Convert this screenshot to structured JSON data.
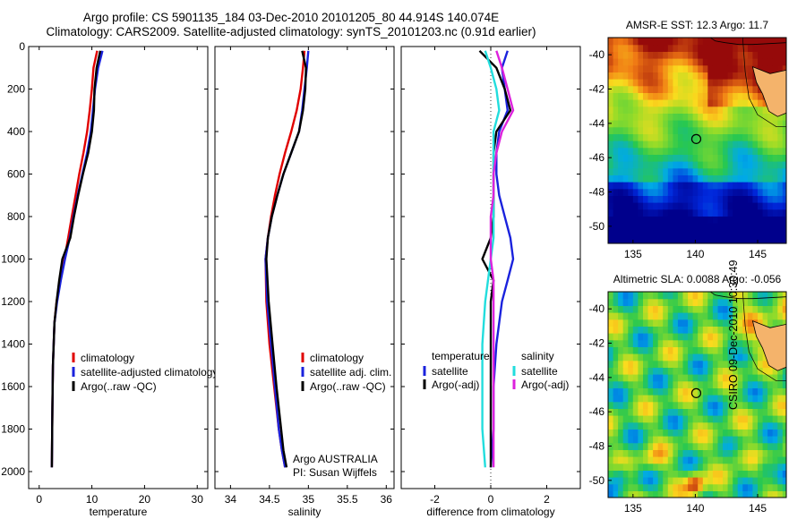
{
  "header": {
    "line1": "Argo profile: CS 5901135_184 03-Dec-2010 20101205_80 44.914S 140.074E",
    "line2": "Climatology: CARS2009. Satellite-adjusted climatology: synTS_20101203.nc (0.91d earlier)"
  },
  "credit": "CSIRO 09-Dec-2010 10:30:49",
  "colors": {
    "climatology": "#e00000",
    "satellite": "#1a22dd",
    "argo": "#000000",
    "salinity_satellite": "#22dddd",
    "salinity_argo": "#dd22dd"
  },
  "chart_data": [
    {
      "id": "temperature",
      "type": "line",
      "xlabel": "temperature",
      "ylabel": "depth",
      "xlim": [
        -2,
        32
      ],
      "ylim": [
        0,
        2080
      ],
      "xticks": [
        0,
        10,
        20,
        30
      ],
      "yticks": [
        0,
        200,
        400,
        600,
        800,
        1000,
        1200,
        1400,
        1600,
        1800,
        2000
      ],
      "series": [
        {
          "name": "climatology",
          "color_key": "climatology",
          "x": [
            11.0,
            10.3,
            10.0,
            9.6,
            9.1,
            8.4,
            7.6,
            6.9,
            6.2,
            5.5,
            4.8,
            4.0,
            3.3,
            2.9,
            2.6,
            2.5,
            2.4
          ],
          "y": [
            20,
            100,
            200,
            300,
            400,
            500,
            600,
            700,
            800,
            900,
            1000,
            1100,
            1200,
            1300,
            1500,
            1700,
            1980
          ]
        },
        {
          "name": "satellite-adjusted climatology",
          "color_key": "satellite",
          "x": [
            12.0,
            11.2,
            10.6,
            10.2,
            9.8,
            9.1,
            8.2,
            7.3,
            6.5,
            5.8,
            4.9,
            4.1,
            3.4,
            2.9,
            2.6,
            2.5,
            2.4
          ],
          "y": [
            20,
            100,
            200,
            300,
            400,
            500,
            600,
            700,
            800,
            900,
            1000,
            1100,
            1200,
            1300,
            1500,
            1700,
            1980
          ]
        },
        {
          "name": "Argo(..raw -QC)",
          "color_key": "argo",
          "x": [
            11.6,
            10.9,
            10.5,
            10.4,
            10.0,
            9.3,
            8.3,
            7.4,
            6.6,
            5.9,
            4.4,
            3.8,
            3.3,
            2.9,
            2.6,
            2.5,
            2.4
          ],
          "y": [
            20,
            100,
            200,
            300,
            400,
            500,
            600,
            700,
            800,
            900,
            1000,
            1100,
            1200,
            1300,
            1500,
            1700,
            1980
          ]
        }
      ],
      "legend": {
        "placement": "lower-right",
        "entries": [
          "climatology",
          "satellite-adjusted climatology",
          "Argo(..raw -QC)"
        ]
      }
    },
    {
      "id": "salinity",
      "type": "line",
      "xlabel": "salinity",
      "ylabel": "depth",
      "xlim": [
        33.8,
        36.1
      ],
      "ylim": [
        0,
        2080
      ],
      "xticks": [
        34,
        34.5,
        35,
        35.5,
        36
      ],
      "yticks": [
        0,
        200,
        400,
        600,
        800,
        1000,
        1200,
        1400,
        1600,
        1800,
        2000
      ],
      "series": [
        {
          "name": "climatology",
          "color_key": "climatology",
          "x": [
            34.95,
            34.93,
            34.9,
            34.85,
            34.78,
            34.7,
            34.63,
            34.57,
            34.52,
            34.48,
            34.45,
            34.46,
            34.5,
            34.56,
            34.62,
            34.66,
            34.7
          ],
          "y": [
            20,
            100,
            200,
            300,
            400,
            500,
            600,
            700,
            800,
            900,
            1000,
            1200,
            1400,
            1600,
            1800,
            1900,
            1980
          ]
        },
        {
          "name": "satellite adj. clim.",
          "color_key": "satellite",
          "x": [
            35.0,
            34.98,
            34.95,
            34.92,
            34.88,
            34.78,
            34.68,
            34.6,
            34.53,
            34.48,
            34.45,
            34.47,
            34.52,
            34.57,
            34.62,
            34.66,
            34.7
          ],
          "y": [
            20,
            100,
            200,
            300,
            400,
            500,
            600,
            700,
            800,
            900,
            1000,
            1200,
            1400,
            1600,
            1800,
            1900,
            1980
          ]
        },
        {
          "name": "Argo(..raw -QC)",
          "color_key": "argo",
          "x": [
            34.92,
            34.97,
            34.96,
            34.93,
            34.88,
            34.78,
            34.68,
            34.6,
            34.53,
            34.48,
            34.46,
            34.49,
            34.54,
            34.59,
            34.65,
            34.68,
            34.72
          ],
          "y": [
            20,
            100,
            200,
            300,
            400,
            500,
            600,
            700,
            800,
            900,
            1000,
            1200,
            1400,
            1600,
            1800,
            1900,
            1980
          ]
        }
      ],
      "legend": {
        "placement": "lower-right",
        "entries": [
          "climatology",
          "satellite adj. clim.",
          "Argo(..raw -QC)"
        ]
      },
      "annotations": [
        "Argo AUSTRALIA",
        "PI: Susan Wijffels"
      ]
    },
    {
      "id": "difference",
      "type": "line",
      "xlabel": "difference from climatology",
      "ylabel": "depth",
      "xlim": [
        -3.2,
        3.2
      ],
      "ylim": [
        0,
        2080
      ],
      "xticks": [
        -2,
        0,
        2
      ],
      "yticks": [
        0,
        200,
        400,
        600,
        800,
        1000,
        1200,
        1400,
        1600,
        1800,
        2000
      ],
      "zero_line": 0,
      "series": [
        {
          "name": "temperature satellite",
          "color_key": "satellite",
          "x": [
            0.6,
            0.4,
            0.5,
            0.6,
            0.3,
            0.2,
            0.2,
            0.3,
            0.5,
            0.7,
            0.8,
            0.6,
            0.4,
            0.2,
            0.1,
            0.1,
            0.0
          ],
          "y": [
            20,
            100,
            200,
            300,
            400,
            500,
            600,
            700,
            800,
            900,
            1000,
            1100,
            1200,
            1400,
            1600,
            1800,
            1980
          ]
        },
        {
          "name": "temperature Argo(-adj)",
          "color_key": "argo",
          "x": [
            -0.4,
            0.2,
            0.5,
            0.7,
            0.2,
            0.1,
            0.1,
            0.1,
            0.1,
            0.0,
            -0.3,
            0.1,
            0.0,
            0.0,
            0.0,
            0.0,
            0.0
          ],
          "y": [
            20,
            100,
            200,
            300,
            400,
            500,
            600,
            700,
            800,
            900,
            1000,
            1100,
            1200,
            1400,
            1600,
            1800,
            1980
          ]
        },
        {
          "name": "salinity satellite",
          "color_key": "salinity_satellite",
          "x": [
            -0.2,
            0.0,
            0.2,
            0.3,
            0.1,
            0.1,
            0.1,
            0.1,
            0.1,
            0.1,
            0.0,
            -0.1,
            -0.2,
            -0.3,
            -0.3,
            -0.3,
            -0.2
          ],
          "y": [
            20,
            100,
            200,
            300,
            400,
            500,
            600,
            700,
            800,
            900,
            1000,
            1100,
            1200,
            1400,
            1600,
            1800,
            1980
          ]
        },
        {
          "name": "salinity Argo(-adj)",
          "color_key": "salinity_argo",
          "x": [
            0.2,
            0.4,
            0.6,
            0.8,
            0.4,
            0.2,
            0.1,
            0.1,
            0.0,
            0.0,
            0.0,
            0.1,
            0.1,
            0.1,
            0.1,
            0.1,
            0.1
          ],
          "y": [
            20,
            100,
            200,
            300,
            400,
            500,
            600,
            700,
            800,
            900,
            1000,
            1100,
            1200,
            1400,
            1600,
            1800,
            1980
          ]
        }
      ],
      "legend": {
        "placement": "lower-center",
        "columns": [
          {
            "heading": "temperature",
            "entries": [
              "satellite",
              "Argo(-adj)"
            ]
          },
          {
            "heading": "salinity",
            "entries": [
              "satellite",
              "Argo(-adj)"
            ]
          }
        ]
      }
    },
    {
      "id": "sst_map",
      "type": "heatmap",
      "title": "AMSR-E SST: 12.3 Argo: 11.7",
      "xlim": [
        133,
        147.3
      ],
      "ylim": [
        -51,
        -39
      ],
      "xticks": [
        135,
        140,
        145
      ],
      "yticks": [
        -40,
        -42,
        -44,
        -46,
        -48,
        -50
      ],
      "float_position": {
        "lon": 140.074,
        "lat": -44.914
      }
    },
    {
      "id": "sla_map",
      "type": "heatmap",
      "title": "Altimetric SLA: 0.0088 Argo: -0.056",
      "xlim": [
        133,
        147.3
      ],
      "ylim": [
        -51,
        -39
      ],
      "xticks": [
        135,
        140,
        145
      ],
      "yticks": [
        -40,
        -42,
        -44,
        -46,
        -48,
        -50
      ],
      "float_position": {
        "lon": 140.074,
        "lat": -44.914
      }
    }
  ]
}
